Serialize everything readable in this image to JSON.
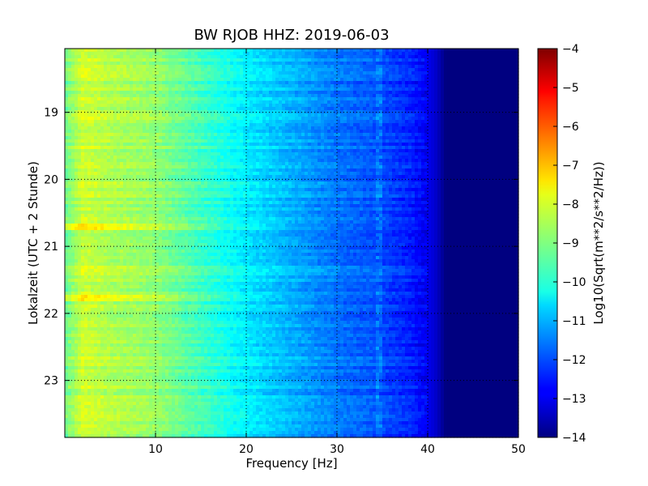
{
  "chart_data": {
    "type": "heatmap",
    "title": "BW RJOB HHZ: 2019-06-03",
    "xlabel": "Frequency [Hz]",
    "ylabel": "Lokalzeit (UTC + 2 Stunde)",
    "xlim": [
      0,
      50
    ],
    "ylim": [
      23.85,
      18.05
    ],
    "x_ticks": [
      10,
      20,
      30,
      40,
      50
    ],
    "y_ticks": [
      19,
      20,
      21,
      22,
      23
    ],
    "grid": true,
    "colormap": "jet",
    "colorbar": {
      "label": "Log10(Sqrt(m**2/s**2/Hz))",
      "range": [
        -14,
        -4
      ],
      "ticks": [
        -4,
        -5,
        -6,
        -7,
        -8,
        -9,
        -10,
        -11,
        -12,
        -13,
        -14
      ]
    },
    "x": [
      0,
      2,
      5,
      10,
      15,
      20,
      25,
      30,
      34,
      38,
      40,
      41,
      42,
      50
    ],
    "spectrum": [
      -9.2,
      -8.2,
      -8.5,
      -8.8,
      -9.6,
      -10.4,
      -11.0,
      -11.6,
      -11.9,
      -12.4,
      -12.9,
      -13.3,
      -14.0,
      -14.0
    ],
    "bright_times": [
      20.7,
      21.78
    ],
    "line_frequency": 34.5
  }
}
